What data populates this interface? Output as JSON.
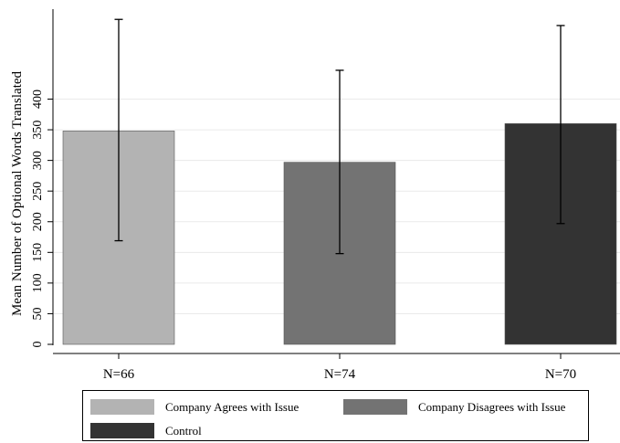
{
  "chart_data": {
    "type": "bar",
    "title": "",
    "xlabel": "",
    "ylabel": "Mean Number of Optional Words Translated",
    "ylim": [
      0,
      400
    ],
    "yticks": [
      0,
      50,
      100,
      150,
      200,
      250,
      300,
      350,
      400
    ],
    "categories": [
      "N=66",
      "N=74",
      "N=70"
    ],
    "values": [
      348,
      297,
      360
    ],
    "error_low": [
      169,
      148,
      197
    ],
    "error_high": [
      530,
      447,
      520
    ],
    "series_names": [
      "Company Agrees with Issue",
      "Company Disagrees with Issue",
      "Control"
    ],
    "colors": [
      "#b3b3b3",
      "#737373",
      "#333333"
    ],
    "grid": true,
    "legend_position": "bottom"
  }
}
